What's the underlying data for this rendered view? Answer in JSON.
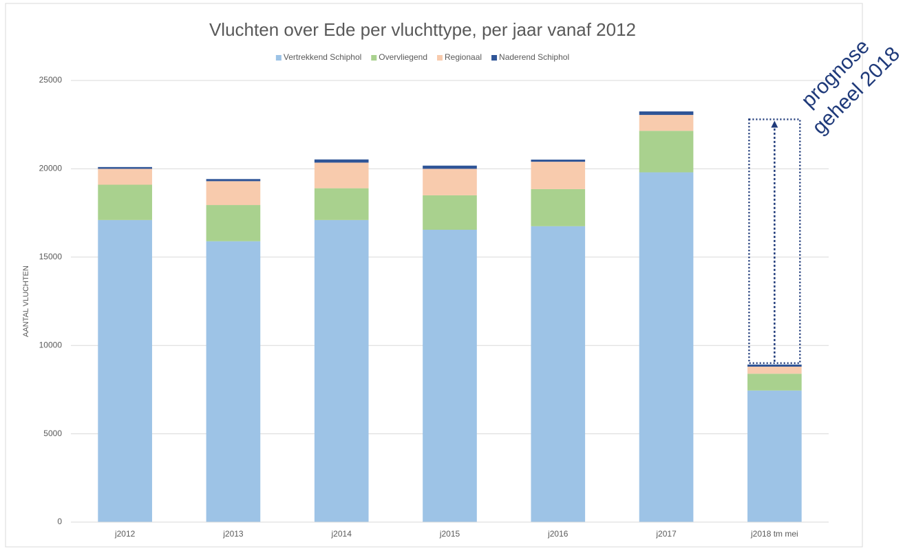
{
  "chart_data": {
    "type": "stacked_bar",
    "title": "Vluchten over Ede per vluchttype, per jaar vanaf 2012",
    "y_label": "AANTAL VLUCHTEN",
    "categories": [
      "j2012",
      "j2013",
      "j2014",
      "j2015",
      "j2016",
      "j2017",
      "j2018 tm mei"
    ],
    "series": [
      {
        "name": "Vertrekkend Schiphol",
        "color": "#9dc3e6",
        "values": [
          17100,
          15900,
          17100,
          16550,
          16750,
          19800,
          7450
        ]
      },
      {
        "name": "Overvliegend",
        "color": "#a9d18e",
        "values": [
          2000,
          2050,
          1800,
          1950,
          2100,
          2350,
          950
        ]
      },
      {
        "name": "Regionaal",
        "color": "#f8cbad",
        "values": [
          900,
          1350,
          1450,
          1500,
          1550,
          900,
          400
        ]
      },
      {
        "name": "Naderend Schiphol",
        "color": "#2f5597",
        "values": [
          100,
          120,
          180,
          180,
          120,
          200,
          120
        ]
      }
    ],
    "ylim": [
      0,
      25000
    ],
    "yticks": [
      0,
      5000,
      10000,
      15000,
      20000,
      25000
    ],
    "grid": true,
    "legend": "top",
    "annotation": {
      "lines": [
        "prognose",
        "geheel 2018"
      ],
      "category": 6,
      "value": 22800,
      "color": "#1f3a7a"
    }
  }
}
